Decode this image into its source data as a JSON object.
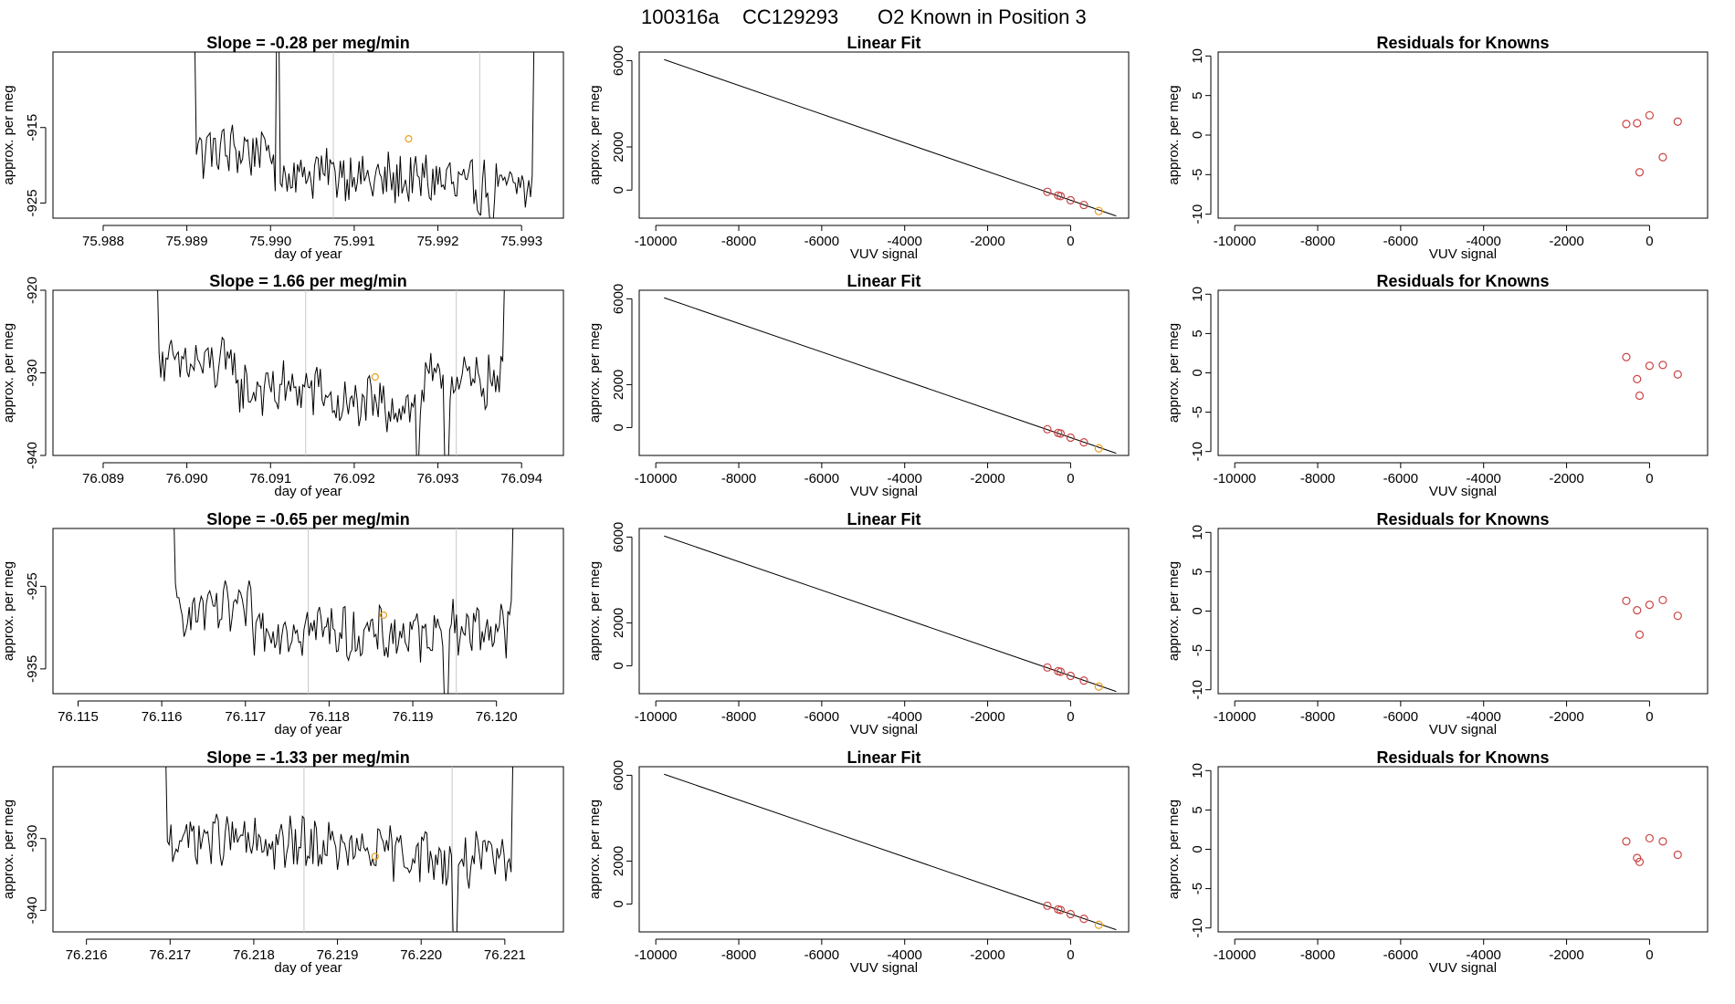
{
  "figure": {
    "title_parts": [
      "100316a",
      "CC129293",
      "O2 Known in Position  3"
    ]
  },
  "colors": {
    "line": "#000000",
    "marker": "#cc4444",
    "highlight": "#e8a020",
    "grid_vline": "#c8c8c8"
  },
  "chart_data": [
    {
      "type": "line",
      "panel": "timeseries",
      "row": 0,
      "title": "Slope =  -0.28  per meg/min",
      "xlabel": "day of year",
      "ylabel": "approx. per meg",
      "xlim": [
        75.9874,
        75.9935
      ],
      "ylim": [
        -927,
        -905
      ],
      "xticks": [
        75.988,
        75.989,
        75.99,
        75.991,
        75.992,
        75.993
      ],
      "xtick_labels": [
        "75.988",
        "75.989",
        "75.990",
        "75.991",
        "75.992",
        "75.993"
      ],
      "yticks": [
        -925,
        -915
      ],
      "ytick_labels": [
        "-925",
        "-915"
      ],
      "vlines": [
        75.99075,
        75.9925
      ],
      "series_range": [
        75.98895,
        75.99325
      ],
      "highlight_point": [
        75.99165,
        -916.5
      ]
    },
    {
      "type": "line",
      "panel": "timeseries",
      "row": 1,
      "title": "Slope =  1.66  per meg/min",
      "xlabel": "day of year",
      "ylabel": "approx. per meg",
      "xlim": [
        76.0884,
        76.0945
      ],
      "ylim": [
        -940,
        -920
      ],
      "xticks": [
        76.089,
        76.09,
        76.091,
        76.092,
        76.093,
        76.094
      ],
      "xtick_labels": [
        "76.089",
        "76.090",
        "76.091",
        "76.092",
        "76.093",
        "76.094"
      ],
      "yticks": [
        -940,
        -930,
        -920
      ],
      "ytick_labels": [
        "-940",
        "-930",
        "-920"
      ],
      "vlines": [
        76.09142,
        76.09322
      ],
      "series_range": [
        76.0895,
        76.0939
      ],
      "highlight_point": [
        76.09225,
        -930.5
      ]
    },
    {
      "type": "line",
      "panel": "timeseries",
      "row": 2,
      "title": "Slope =  -0.65  per meg/min",
      "xlabel": "day of year",
      "ylabel": "approx. per meg",
      "xlim": [
        76.1147,
        76.1208
      ],
      "ylim": [
        -938,
        -918
      ],
      "xticks": [
        76.115,
        76.116,
        76.117,
        76.118,
        76.119,
        76.12
      ],
      "xtick_labels": [
        "76.115",
        "76.116",
        "76.117",
        "76.118",
        "76.119",
        "76.120"
      ],
      "yticks": [
        -935,
        -925
      ],
      "ytick_labels": [
        "-935",
        "-925"
      ],
      "vlines": [
        76.11775,
        76.11952
      ],
      "series_range": [
        76.116,
        76.1203
      ],
      "highlight_point": [
        76.11865,
        -928.5
      ]
    },
    {
      "type": "line",
      "panel": "timeseries",
      "row": 3,
      "title": "Slope =  -1.33  per meg/min",
      "xlabel": "day of year",
      "ylabel": "approx. per meg",
      "xlim": [
        76.2156,
        76.2217
      ],
      "ylim": [
        -943,
        -920
      ],
      "xticks": [
        76.216,
        76.217,
        76.218,
        76.219,
        76.22,
        76.221
      ],
      "xtick_labels": [
        "76.216",
        "76.217",
        "76.218",
        "76.219",
        "76.220",
        "76.221"
      ],
      "yticks": [
        -940,
        -930
      ],
      "ytick_labels": [
        "-940",
        "-930"
      ],
      "vlines": [
        76.2186,
        76.22037
      ],
      "series_range": [
        76.2168,
        76.2212
      ],
      "highlight_point": [
        76.21945,
        -932.5
      ]
    },
    {
      "type": "scatter",
      "panel": "linearfit",
      "row": 0,
      "title": "Linear Fit",
      "xlabel": "VUV signal",
      "ylabel": "approx. per meg",
      "xlim": [
        -10400,
        1400
      ],
      "ylim": [
        -1300,
        6400
      ],
      "xticks": [
        -10000,
        -8000,
        -6000,
        -4000,
        -2000,
        0
      ],
      "xtick_labels": [
        "-10000",
        "-8000",
        "-6000",
        "-4000",
        "-2000",
        "0"
      ],
      "yticks": [
        0,
        2000,
        6000
      ],
      "ytick_labels": [
        "0",
        "2000",
        "6000"
      ],
      "fit_line": {
        "x": [
          -9800,
          1100
        ],
        "y": [
          6050,
          -1200
        ]
      },
      "points": {
        "x": [
          -560,
          -300,
          -240,
          0,
          320,
          680
        ],
        "y": [
          -80,
          -250,
          -280,
          -470,
          -690,
          -970
        ]
      },
      "highlight_index": 5
    },
    {
      "type": "scatter",
      "panel": "linearfit",
      "row": 1,
      "title": "Linear Fit",
      "xlabel": "VUV signal",
      "ylabel": "approx. per meg",
      "xlim": [
        -10400,
        1400
      ],
      "ylim": [
        -1300,
        6400
      ],
      "xticks": [
        -10000,
        -8000,
        -6000,
        -4000,
        -2000,
        0
      ],
      "xtick_labels": [
        "-10000",
        "-8000",
        "-6000",
        "-4000",
        "-2000",
        "0"
      ],
      "yticks": [
        0,
        2000,
        6000
      ],
      "ytick_labels": [
        "0",
        "2000",
        "6000"
      ],
      "fit_line": {
        "x": [
          -9800,
          1100
        ],
        "y": [
          6050,
          -1200
        ]
      },
      "points": {
        "x": [
          -560,
          -300,
          -240,
          0,
          320,
          680
        ],
        "y": [
          -80,
          -250,
          -280,
          -470,
          -690,
          -970
        ]
      },
      "highlight_index": 5
    },
    {
      "type": "scatter",
      "panel": "linearfit",
      "row": 2,
      "title": "Linear Fit",
      "xlabel": "VUV signal",
      "ylabel": "approx. per meg",
      "xlim": [
        -10400,
        1400
      ],
      "ylim": [
        -1300,
        6400
      ],
      "xticks": [
        -10000,
        -8000,
        -6000,
        -4000,
        -2000,
        0
      ],
      "xtick_labels": [
        "-10000",
        "-8000",
        "-6000",
        "-4000",
        "-2000",
        "0"
      ],
      "yticks": [
        0,
        2000,
        6000
      ],
      "ytick_labels": [
        "0",
        "2000",
        "6000"
      ],
      "fit_line": {
        "x": [
          -9800,
          1100
        ],
        "y": [
          6050,
          -1200
        ]
      },
      "points": {
        "x": [
          -560,
          -300,
          -240,
          0,
          320,
          680
        ],
        "y": [
          -80,
          -250,
          -280,
          -470,
          -690,
          -970
        ]
      },
      "highlight_index": 5
    },
    {
      "type": "scatter",
      "panel": "linearfit",
      "row": 3,
      "title": "Linear Fit",
      "xlabel": "VUV signal",
      "ylabel": "approx. per meg",
      "xlim": [
        -10400,
        1400
      ],
      "ylim": [
        -1300,
        6400
      ],
      "xticks": [
        -10000,
        -8000,
        -6000,
        -4000,
        -2000,
        0
      ],
      "xtick_labels": [
        "-10000",
        "-8000",
        "-6000",
        "-4000",
        "-2000",
        "0"
      ],
      "yticks": [
        0,
        2000,
        6000
      ],
      "ytick_labels": [
        "0",
        "2000",
        "6000"
      ],
      "fit_line": {
        "x": [
          -9800,
          1100
        ],
        "y": [
          6050,
          -1200
        ]
      },
      "points": {
        "x": [
          -560,
          -300,
          -240,
          0,
          320,
          680
        ],
        "y": [
          -80,
          -250,
          -280,
          -470,
          -690,
          -970
        ]
      },
      "highlight_index": 5
    },
    {
      "type": "scatter",
      "panel": "residuals",
      "row": 0,
      "title": "Residuals for Knowns",
      "xlabel": "VUV signal",
      "ylabel": "approx. per meg",
      "xlim": [
        -10400,
        1400
      ],
      "ylim": [
        -10.5,
        10.5
      ],
      "xticks": [
        -10000,
        -8000,
        -6000,
        -4000,
        -2000,
        0
      ],
      "xtick_labels": [
        "-10000",
        "-8000",
        "-6000",
        "-4000",
        "-2000",
        "0"
      ],
      "yticks": [
        -10,
        -5,
        0,
        5,
        10
      ],
      "ytick_labels": [
        "-10",
        "-5",
        "0",
        "5",
        "10"
      ],
      "points": {
        "x": [
          -560,
          -300,
          -240,
          0,
          320,
          680
        ],
        "y": [
          1.4,
          1.5,
          -4.7,
          2.5,
          -2.8,
          1.7
        ]
      }
    },
    {
      "type": "scatter",
      "panel": "residuals",
      "row": 1,
      "title": "Residuals for Knowns",
      "xlabel": "VUV signal",
      "ylabel": "approx. per meg",
      "xlim": [
        -10400,
        1400
      ],
      "ylim": [
        -10.5,
        10.5
      ],
      "xticks": [
        -10000,
        -8000,
        -6000,
        -4000,
        -2000,
        0
      ],
      "xtick_labels": [
        "-10000",
        "-8000",
        "-6000",
        "-4000",
        "-2000",
        "0"
      ],
      "yticks": [
        -10,
        -5,
        0,
        5,
        10
      ],
      "ytick_labels": [
        "-10",
        "-5",
        "0",
        "5",
        "10"
      ],
      "points": {
        "x": [
          -560,
          -300,
          -240,
          0,
          320,
          680
        ],
        "y": [
          2.0,
          -0.8,
          -2.9,
          0.9,
          1.0,
          -0.2
        ]
      }
    },
    {
      "type": "scatter",
      "panel": "residuals",
      "row": 2,
      "title": "Residuals for Knowns",
      "xlabel": "VUV signal",
      "ylabel": "approx. per meg",
      "xlim": [
        -10400,
        1400
      ],
      "ylim": [
        -10.5,
        10.5
      ],
      "xticks": [
        -10000,
        -8000,
        -6000,
        -4000,
        -2000,
        0
      ],
      "xtick_labels": [
        "-10000",
        "-8000",
        "-6000",
        "-4000",
        "-2000",
        "0"
      ],
      "yticks": [
        -10,
        -5,
        0,
        5,
        10
      ],
      "ytick_labels": [
        "-10",
        "-5",
        "0",
        "5",
        "10"
      ],
      "points": {
        "x": [
          -560,
          -300,
          -240,
          0,
          320,
          680
        ],
        "y": [
          1.3,
          0.1,
          -3.0,
          0.8,
          1.4,
          -0.6
        ]
      }
    },
    {
      "type": "scatter",
      "panel": "residuals",
      "row": 3,
      "title": "Residuals for Knowns",
      "xlabel": "VUV signal",
      "ylabel": "approx. per meg",
      "xlim": [
        -10400,
        1400
      ],
      "ylim": [
        -10.5,
        10.5
      ],
      "xticks": [
        -10000,
        -8000,
        -6000,
        -4000,
        -2000,
        0
      ],
      "xtick_labels": [
        "-10000",
        "-8000",
        "-6000",
        "-4000",
        "-2000",
        "0"
      ],
      "yticks": [
        -10,
        -5,
        0,
        5,
        10
      ],
      "ytick_labels": [
        "-10",
        "-5",
        "0",
        "5",
        "10"
      ],
      "points": {
        "x": [
          -560,
          -300,
          -240,
          0,
          320,
          680
        ],
        "y": [
          1.0,
          -1.1,
          -1.6,
          1.4,
          1.0,
          -0.7
        ]
      }
    }
  ]
}
